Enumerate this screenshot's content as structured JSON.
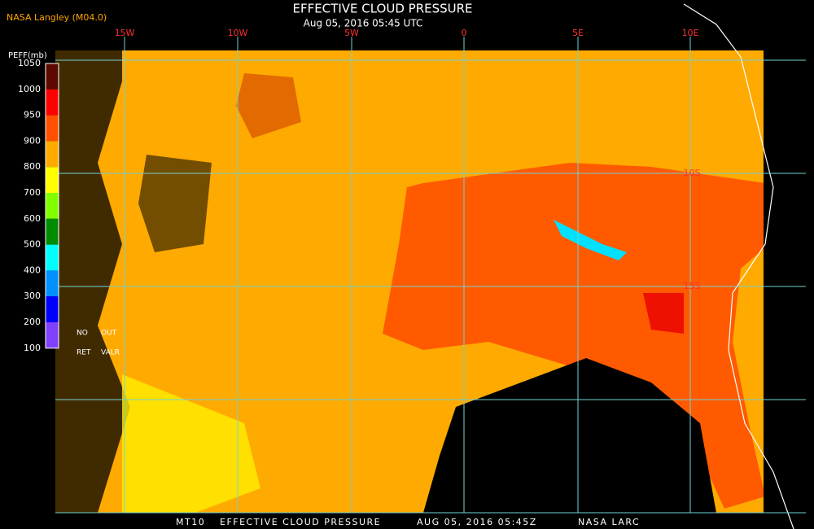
{
  "header": {
    "source": "NASA Langley (M04.0)",
    "title": "EFFECTIVE CLOUD PRESSURE",
    "subtitle": "Aug 05, 2016 05:45 UTC"
  },
  "legend": {
    "label": "PEFF(mb)",
    "ticks": [
      "1050",
      "1000",
      "950",
      "900",
      "800",
      "700",
      "600",
      "500",
      "400",
      "300",
      "200",
      "100"
    ],
    "notes": [
      "NO",
      "OUT",
      "RET",
      "VALR"
    ]
  },
  "map": {
    "lon_labels": [
      "15W",
      "10W",
      "5W",
      "0",
      "5E",
      "10E"
    ],
    "lat_labels": [
      "10S",
      "15S"
    ]
  },
  "footer": [
    "MT10",
    "EFFECTIVE CLOUD PRESSURE",
    "AUG 05, 2016 05:45Z",
    "NASA LARC"
  ]
}
